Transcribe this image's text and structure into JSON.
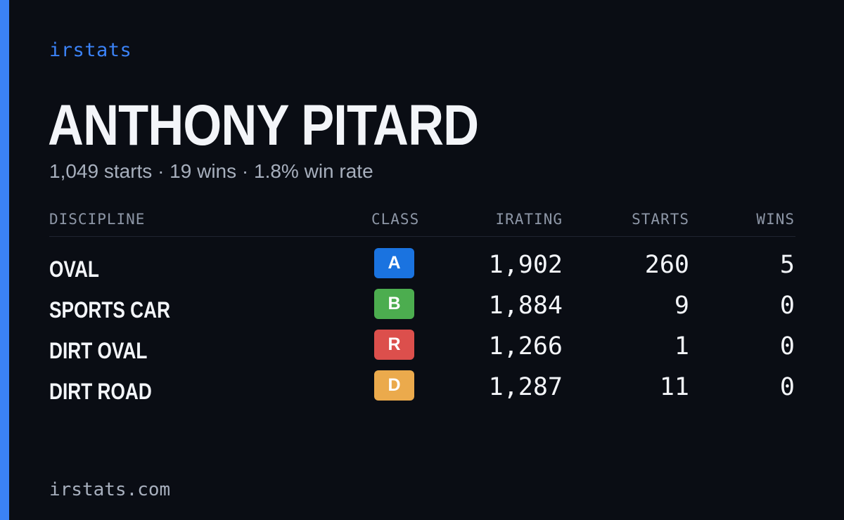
{
  "brand": "irstats",
  "driver": {
    "name": "ANTHONY PITARD",
    "summary": "1,049 starts · 19 wins · 1.8% win rate"
  },
  "table": {
    "headers": {
      "discipline": "DISCIPLINE",
      "class": "CLASS",
      "irating": "IRATING",
      "starts": "STARTS",
      "wins": "WINS"
    },
    "rows": [
      {
        "discipline": "OVAL",
        "class": "A",
        "class_color": "#1a73e0",
        "irating": "1,902",
        "starts": "260",
        "wins": "5"
      },
      {
        "discipline": "SPORTS CAR",
        "class": "B",
        "class_color": "#4cad4f",
        "irating": "1,884",
        "starts": "9",
        "wins": "0"
      },
      {
        "discipline": "DIRT OVAL",
        "class": "R",
        "class_color": "#dc4f4c",
        "irating": "1,266",
        "starts": "1",
        "wins": "0"
      },
      {
        "discipline": "DIRT ROAD",
        "class": "D",
        "class_color": "#ebaa4c",
        "irating": "1,287",
        "starts": "11",
        "wins": "0"
      }
    ]
  },
  "footer": "irstats.com",
  "colors": {
    "background": "#0a0d14",
    "accent": "#3b82f6",
    "text": "#f3f5f9",
    "muted": "#a7afbd"
  }
}
